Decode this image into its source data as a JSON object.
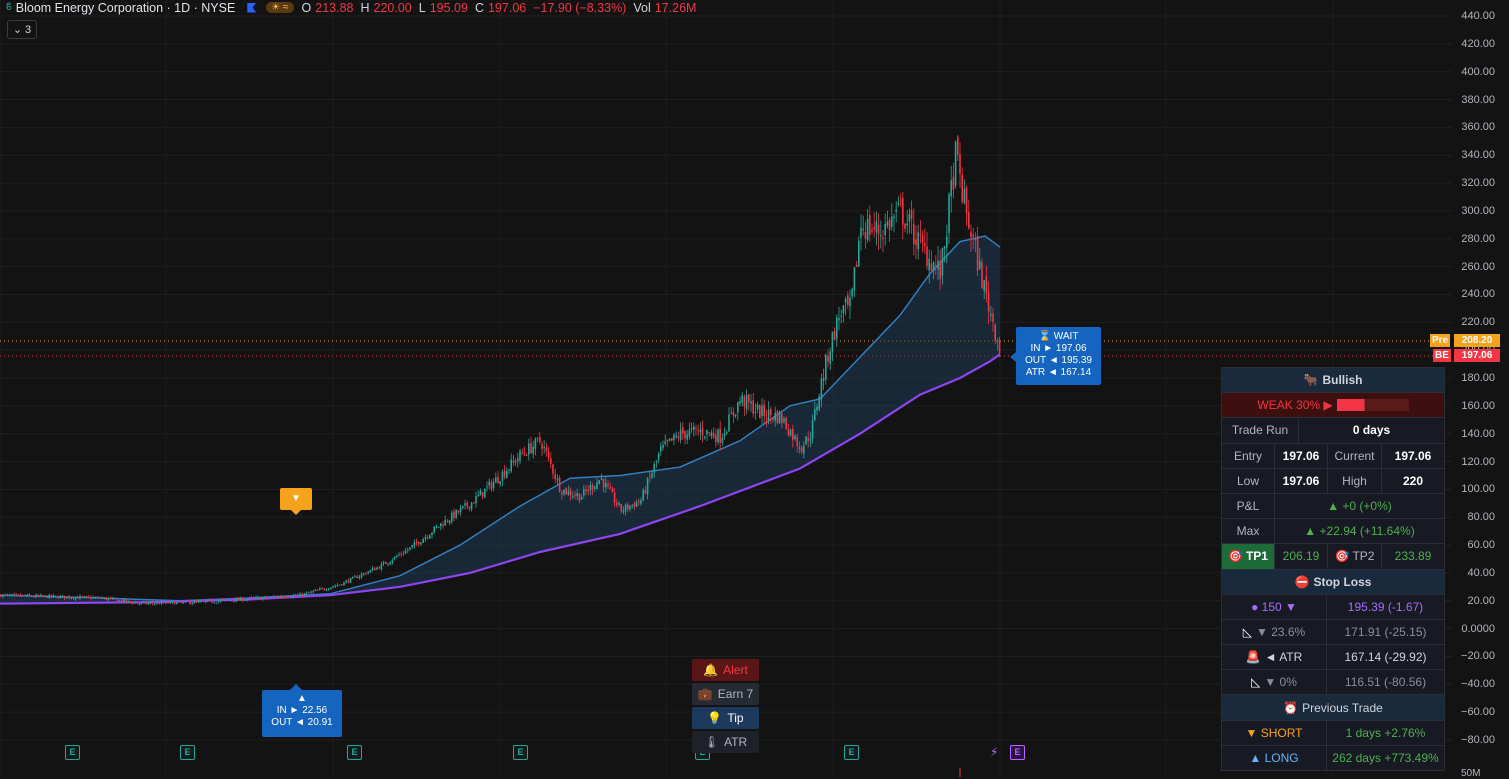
{
  "header": {
    "symbol": "Bloom Energy Corporation · 1D · NYSE",
    "o_label": "O",
    "o": "213.88",
    "h_label": "H",
    "h": "220.00",
    "l_label": "L",
    "l": "195.09",
    "c_label": "C",
    "c": "197.06",
    "change": "−17.90 (−8.33%)",
    "vol_label": "Vol",
    "vol": "17.26M",
    "collapse_count": "3"
  },
  "colors": {
    "up": "#26a69a",
    "down": "#f23645",
    "ma_blue": "#2f7fc1",
    "ma_purple": "#8e44f0",
    "badge_orange": "#f7a21b",
    "badge_blue": "#1565c0"
  },
  "axis": {
    "ticks": [
      "440.00",
      "420.00",
      "400.00",
      "380.00",
      "360.00",
      "340.00",
      "320.00",
      "300.00",
      "280.00",
      "260.00",
      "240.00",
      "220.00",
      "200.00",
      "180.00",
      "160.00",
      "140.00",
      "120.00",
      "100.00",
      "80.00",
      "60.00",
      "40.00",
      "20.00",
      "0.0000",
      "−20.00",
      "−40.00",
      "−60.00",
      "−80.00"
    ],
    "tick_values": [
      440,
      420,
      400,
      380,
      360,
      340,
      320,
      300,
      280,
      260,
      240,
      220,
      200,
      180,
      160,
      140,
      120,
      100,
      80,
      60,
      40,
      20,
      0,
      -20,
      -40,
      -60,
      -80
    ],
    "bottom_label": "50M",
    "pre_label": "Pre",
    "pre_value": "208.20",
    "be_label": "BE",
    "be_value": "197.06"
  },
  "chart_data": {
    "type": "candlestick",
    "ylim": [
      -80,
      440
    ],
    "close_path": [
      [
        0,
        24
      ],
      [
        100,
        22
      ],
      [
        140,
        18
      ],
      [
        200,
        19
      ],
      [
        260,
        22
      ],
      [
        300,
        24
      ],
      [
        340,
        32
      ],
      [
        380,
        45
      ],
      [
        410,
        58
      ],
      [
        440,
        75
      ],
      [
        470,
        90
      ],
      [
        500,
        110
      ],
      [
        520,
        125
      ],
      [
        540,
        135
      ],
      [
        560,
        100
      ],
      [
        580,
        95
      ],
      [
        600,
        108
      ],
      [
        620,
        85
      ],
      [
        640,
        92
      ],
      [
        660,
        128
      ],
      [
        680,
        140
      ],
      [
        700,
        142
      ],
      [
        720,
        138
      ],
      [
        740,
        165
      ],
      [
        760,
        155
      ],
      [
        780,
        152
      ],
      [
        800,
        130
      ],
      [
        810,
        140
      ],
      [
        820,
        175
      ],
      [
        830,
        205
      ],
      [
        840,
        228
      ],
      [
        850,
        230
      ],
      [
        860,
        290
      ],
      [
        880,
        285
      ],
      [
        900,
        300
      ],
      [
        920,
        275
      ],
      [
        940,
        255
      ],
      [
        955,
        340
      ],
      [
        965,
        300
      ],
      [
        975,
        270
      ],
      [
        985,
        240
      ],
      [
        995,
        213
      ],
      [
        1000,
        197
      ]
    ],
    "ma_blue": [
      [
        0,
        24
      ],
      [
        100,
        22
      ],
      [
        180,
        20
      ],
      [
        250,
        22
      ],
      [
        330,
        25
      ],
      [
        400,
        38
      ],
      [
        460,
        60
      ],
      [
        520,
        88
      ],
      [
        570,
        108
      ],
      [
        620,
        110
      ],
      [
        680,
        116
      ],
      [
        740,
        135
      ],
      [
        790,
        160
      ],
      [
        820,
        165
      ],
      [
        860,
        195
      ],
      [
        900,
        225
      ],
      [
        930,
        255
      ],
      [
        960,
        278
      ],
      [
        985,
        282
      ],
      [
        1000,
        274
      ]
    ],
    "ma_purple": [
      [
        0,
        18
      ],
      [
        150,
        19
      ],
      [
        250,
        21
      ],
      [
        330,
        24
      ],
      [
        400,
        30
      ],
      [
        470,
        40
      ],
      [
        540,
        55
      ],
      [
        620,
        68
      ],
      [
        700,
        88
      ],
      [
        800,
        115
      ],
      [
        860,
        140
      ],
      [
        920,
        168
      ],
      [
        960,
        180
      ],
      [
        990,
        192
      ],
      [
        1000,
        197
      ]
    ]
  },
  "badges": {
    "wait_title": "WAIT",
    "wait_in": "IN ► 197.06",
    "wait_out": "OUT ◄ 195.39",
    "wait_atr": "ATR ◄ 167.14",
    "entry_in": "IN ► 22.56",
    "entry_out": "OUT ◄ 20.91",
    "up_arrow": "▲",
    "down_arrow": "▼",
    "earn_letter": "E"
  },
  "mini_menu": {
    "alert": "Alert",
    "earn": "Earn 7",
    "tip": "Tip",
    "atr": "ATR"
  },
  "panel": {
    "title": "Bullish",
    "strength": "WEAK  30%  ▶",
    "trade_run_label": "Trade Run",
    "trade_run_value": "0 days",
    "entry_label": "Entry",
    "entry_value": "197.06",
    "current_label": "Current",
    "current_value": "197.06",
    "low_label": "Low",
    "low_value": "197.06",
    "high_label": "High",
    "high_value": "220",
    "pl_label": "P&L",
    "pl_value": "▲ +0  (+0%)",
    "max_label": "Max",
    "max_value": "▲ +22.94  (+11.64%)",
    "tp1_label": "TP1",
    "tp1_value": "206.19",
    "tp2_label": "TP2",
    "tp2_value": "233.89",
    "stop_loss_title": "Stop Loss",
    "sl1_label": "● 150 ▼",
    "sl1_value": "195.39  (-1.67)",
    "sl2_label": "▼ 23.6%",
    "sl2_value": "171.91  (-25.15)",
    "sl3_label": "◄ ATR",
    "sl3_value": "167.14  (-29.92)",
    "sl4_label": "▼ 0%",
    "sl4_value": "116.51  (-80.56)",
    "prev_title": "Previous Trade",
    "short_label": "▼ SHORT",
    "short_value": "1 days  +2.76%",
    "long_label": "▲ LONG",
    "long_value": "262 days  +773.49%"
  }
}
